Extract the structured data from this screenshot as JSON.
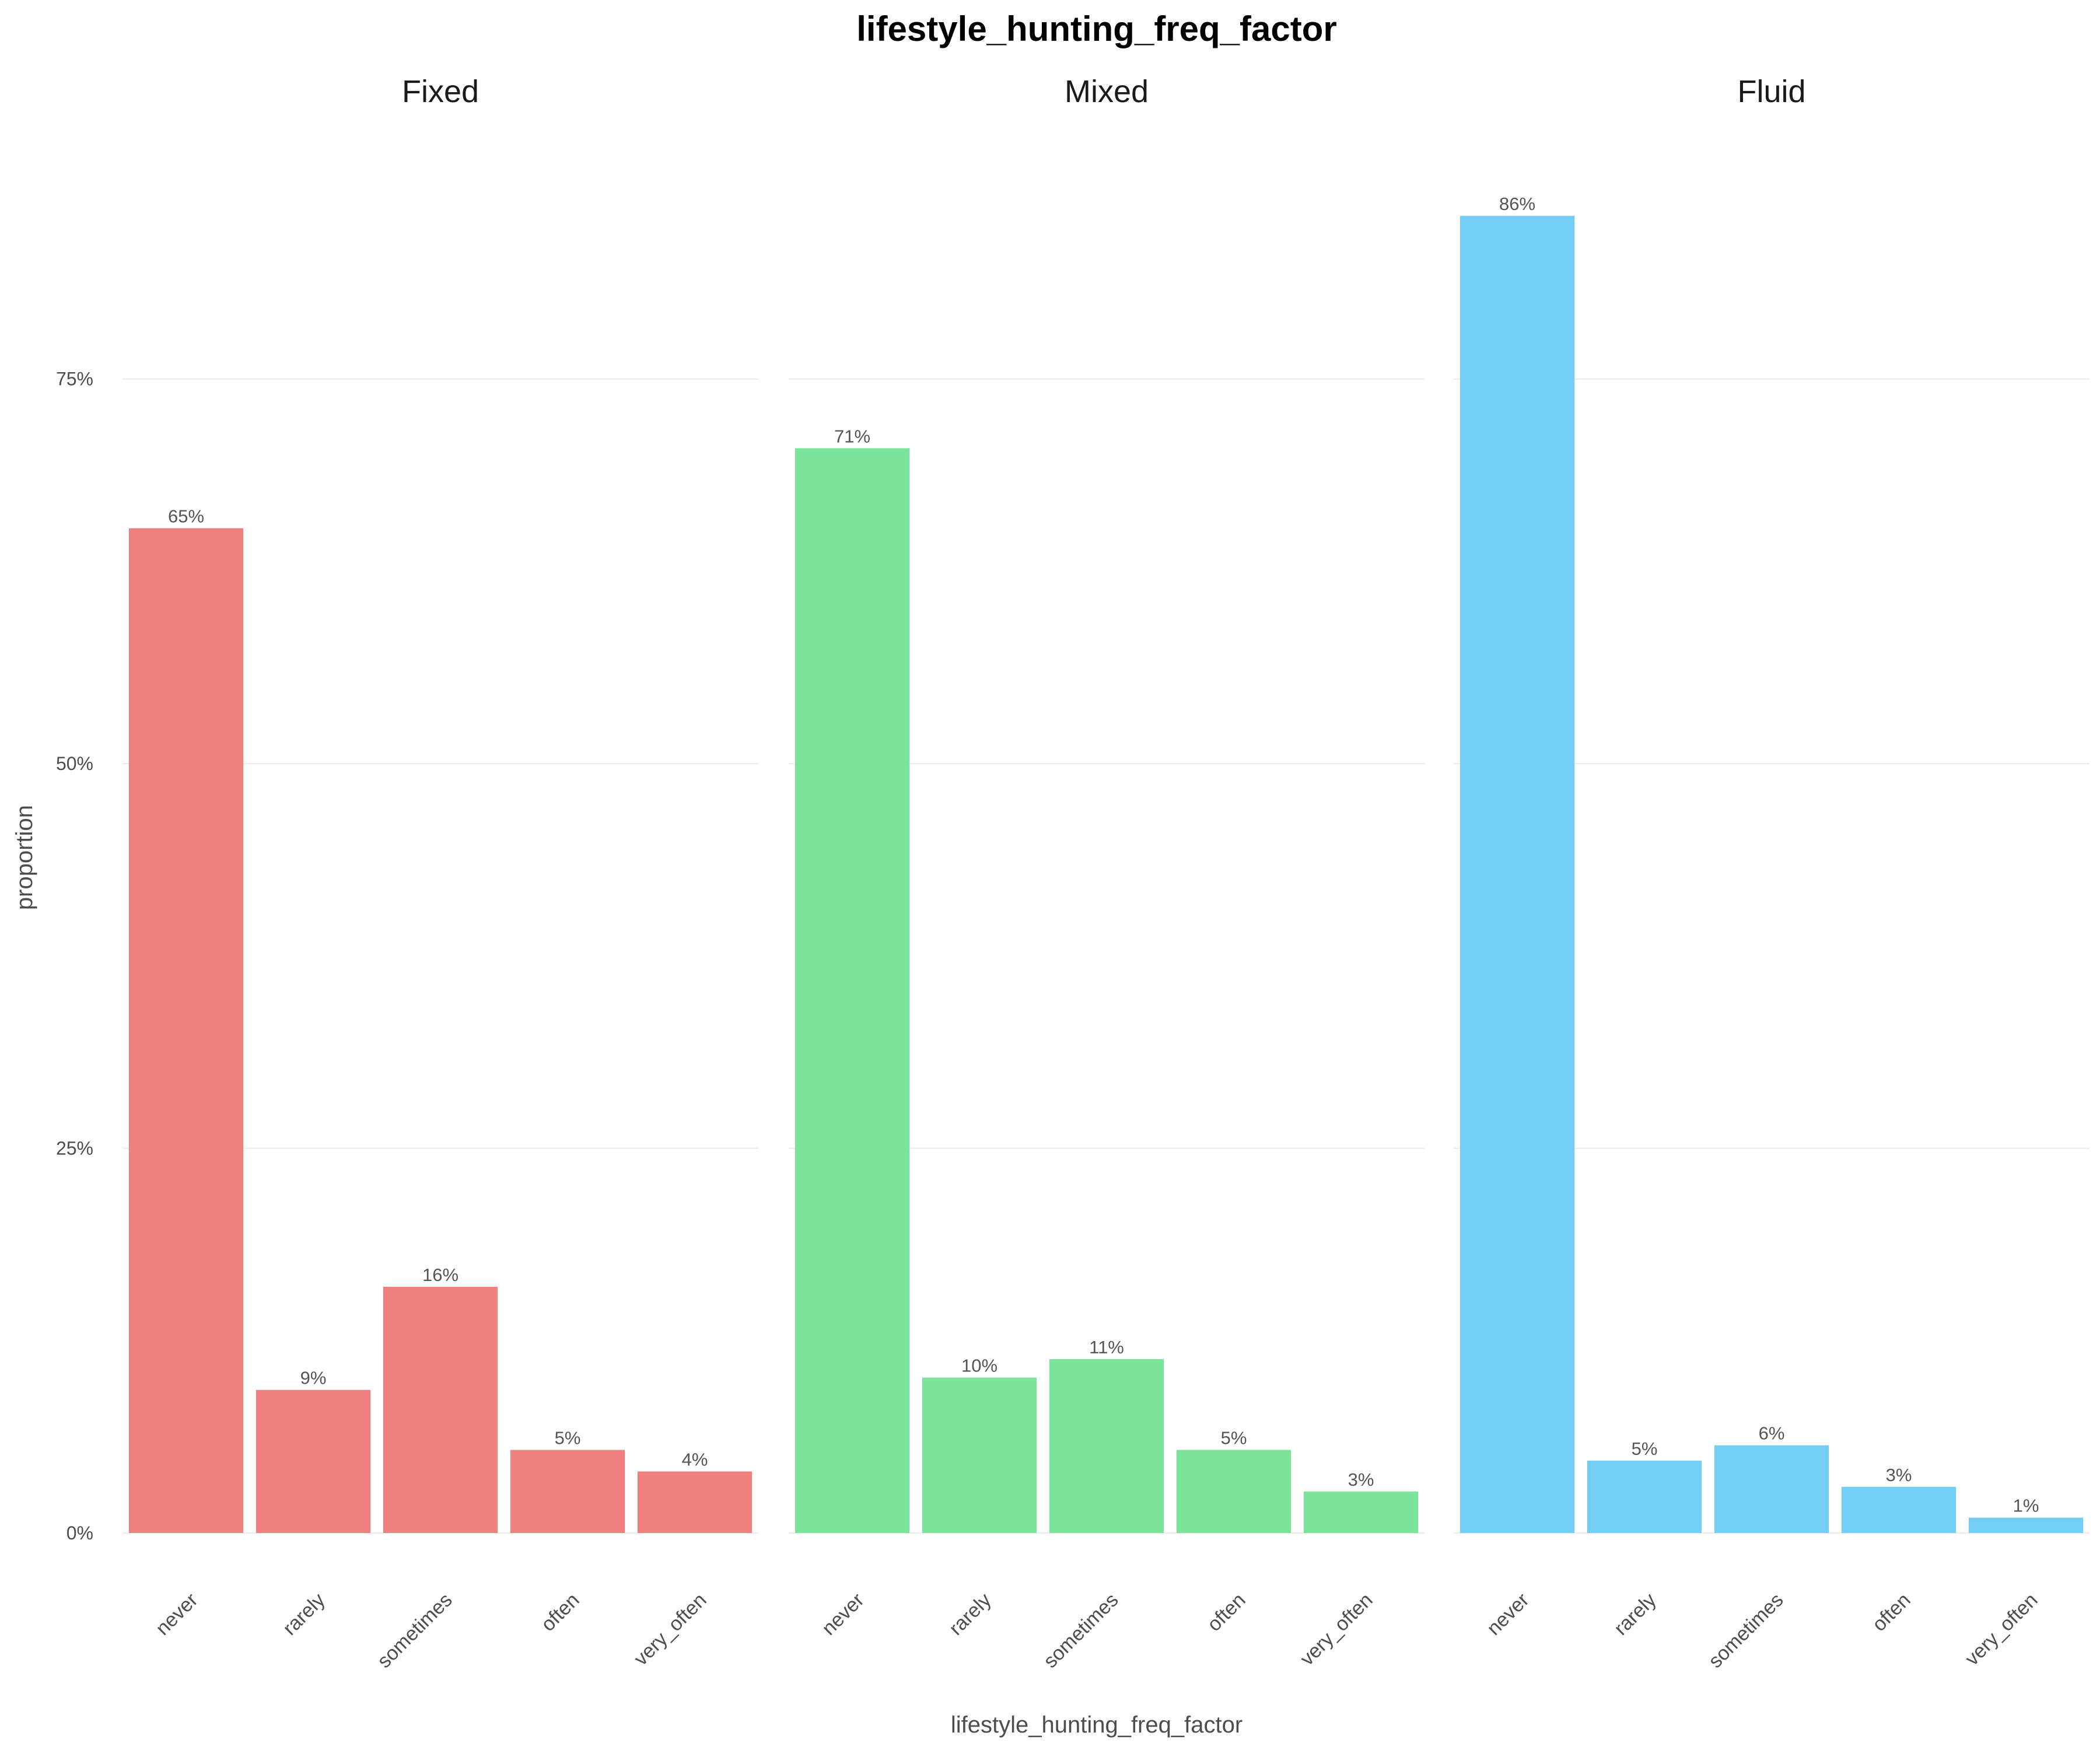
{
  "chart_data": {
    "type": "bar",
    "title": "lifestyle_hunting_freq_factor",
    "xlabel": "lifestyle_hunting_freq_factor",
    "ylabel": "proportion",
    "categories": [
      "never",
      "rarely",
      "sometimes",
      "often",
      "very_often"
    ],
    "ylim": [
      0,
      0.9
    ],
    "y_ticks": [
      {
        "value": 0,
        "label": "0%"
      },
      {
        "value": 0.25,
        "label": "25%"
      },
      {
        "value": 0.5,
        "label": "50%"
      },
      {
        "value": 0.75,
        "label": "75%"
      }
    ],
    "grid": true,
    "facets": [
      {
        "name": "Fixed",
        "color": "#F08080",
        "values": [
          0.653,
          0.093,
          0.16,
          0.054,
          0.04
        ],
        "labels": [
          "65%",
          "9%",
          "16%",
          "5%",
          "4%"
        ]
      },
      {
        "name": "Mixed",
        "color": "#7CE49A",
        "values": [
          0.705,
          0.101,
          0.113,
          0.054,
          0.027
        ],
        "labels": [
          "71%",
          "10%",
          "11%",
          "5%",
          "3%"
        ]
      },
      {
        "name": "Fluid",
        "color": "#73CEF5",
        "values": [
          0.856,
          0.047,
          0.057,
          0.03,
          0.01
        ],
        "labels": [
          "86%",
          "5%",
          "6%",
          "3%",
          "1%"
        ]
      }
    ]
  }
}
